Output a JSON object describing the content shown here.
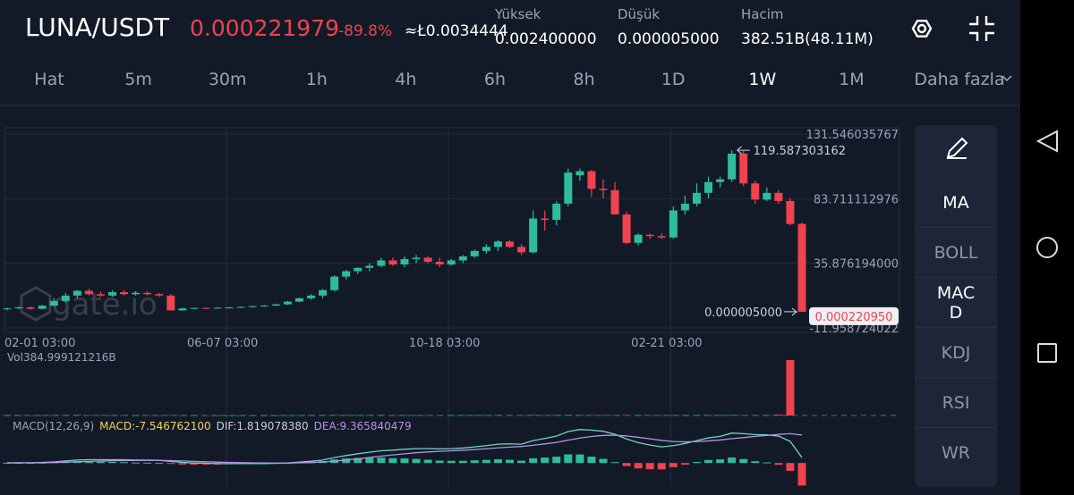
{
  "header": {
    "pair": "LUNA/USDT",
    "price": "0.000221979",
    "change": "-89.8%",
    "approx": "≈Ł0.0034444",
    "stats": [
      {
        "label": "Yüksek",
        "value": "0.002400000"
      },
      {
        "label": "Düşük",
        "value": "0.000005000"
      },
      {
        "label": "Hacim",
        "value": "382.51B(48.11M)"
      }
    ]
  },
  "timeframes": [
    {
      "label": "Hat",
      "active": false
    },
    {
      "label": "5m",
      "active": false
    },
    {
      "label": "30m",
      "active": false
    },
    {
      "label": "1h",
      "active": false
    },
    {
      "label": "4h",
      "active": false
    },
    {
      "label": "6h",
      "active": false
    },
    {
      "label": "8h",
      "active": false
    },
    {
      "label": "1D",
      "active": false
    },
    {
      "label": "1W",
      "active": true
    },
    {
      "label": "1M",
      "active": false
    },
    {
      "label": "Daha fazla",
      "active": false
    }
  ],
  "indicators": [
    {
      "label": "MA",
      "active": true
    },
    {
      "label": "BOLL",
      "active": false
    },
    {
      "label": "MACD",
      "active": true
    },
    {
      "label": "KDJ",
      "active": false
    },
    {
      "label": "RSI",
      "active": false
    },
    {
      "label": "WR",
      "active": false
    }
  ],
  "watermark": "gate.io",
  "chart_data": {
    "type": "candlestick",
    "up_color": "#2ebd9b",
    "down_color": "#f0424f",
    "grid": true,
    "categories": [
      "02-01 03:00",
      null,
      null,
      null,
      null,
      null,
      null,
      null,
      null,
      null,
      null,
      null,
      null,
      null,
      null,
      null,
      "06-07 03:00",
      null,
      null,
      null,
      null,
      null,
      null,
      null,
      null,
      null,
      null,
      null,
      null,
      null,
      null,
      null,
      null,
      null,
      null,
      "10-18 03:00",
      null,
      null,
      null,
      null,
      null,
      null,
      null,
      null,
      null,
      null,
      null,
      null,
      null,
      null,
      null,
      null,
      null,
      null,
      "02-21 03:00",
      null,
      null,
      null,
      null,
      null,
      null,
      null,
      null,
      null,
      null,
      null,
      null,
      null,
      null
    ],
    "open": [
      2,
      2.5,
      3.2,
      2.2,
      4.5,
      8,
      12,
      15.5,
      13,
      12,
      14.5,
      13,
      14,
      13,
      12,
      1,
      2.5,
      2.8,
      2.6,
      3,
      3.2,
      3.6,
      4.2,
      4.6,
      5.5,
      7.5,
      10,
      12,
      16,
      26,
      30,
      32.5,
      34,
      38,
      35,
      39,
      40,
      37,
      35,
      38,
      41,
      45,
      48,
      52,
      48,
      44,
      69,
      68,
      80,
      101,
      104,
      91,
      90,
      72,
      51,
      57,
      56,
      55,
      75,
      80,
      88,
      96,
      98,
      117,
      95,
      83,
      88,
      82,
      65
    ],
    "high": [
      3,
      4,
      4,
      5,
      10,
      14,
      16,
      17,
      15,
      16,
      16,
      15,
      15,
      14,
      13,
      3,
      3,
      3.3,
      3.5,
      3.5,
      4,
      4.5,
      5,
      6,
      8,
      10.5,
      13,
      17,
      27,
      31,
      33,
      36,
      40,
      40,
      41,
      42,
      41,
      40,
      39,
      42,
      46,
      50,
      53,
      53,
      50,
      75,
      75,
      82,
      106,
      106,
      105,
      98,
      96,
      74,
      58,
      58,
      58,
      78,
      86,
      95,
      100,
      100,
      119.587303162,
      119,
      97,
      92,
      90,
      84,
      66
    ],
    "low": [
      1,
      2,
      1.5,
      2,
      4,
      7,
      10,
      12,
      11,
      11,
      12,
      12,
      12,
      11,
      1,
      0.8,
      2,
      2.2,
      2.3,
      2.5,
      2.8,
      3,
      3.8,
      4.3,
      5,
      7,
      9,
      10,
      15,
      24,
      28,
      30,
      33,
      34,
      33,
      36,
      36,
      33,
      34,
      36,
      40,
      43,
      45,
      47,
      42,
      43,
      60,
      64,
      78,
      97,
      85,
      84,
      72,
      50,
      49,
      54,
      54,
      54,
      72,
      78,
      84,
      92,
      96,
      93,
      80,
      82,
      80,
      64,
      5e-06
    ],
    "close": [
      2.5,
      3.2,
      2.2,
      4.5,
      8,
      12,
      15.5,
      13,
      12,
      14.5,
      13,
      14,
      13,
      12,
      1,
      2.5,
      2.8,
      2.6,
      3,
      3.2,
      3.6,
      4.2,
      4.6,
      5.5,
      7.5,
      10,
      12,
      16,
      26,
      30,
      32.5,
      34,
      38,
      35,
      39,
      40,
      37,
      35,
      38,
      41,
      45,
      48,
      52,
      48,
      44,
      69,
      68,
      80,
      103,
      104,
      91,
      90,
      72,
      51,
      57,
      56,
      55,
      75,
      80,
      88,
      96,
      98,
      117,
      95,
      83,
      88,
      82,
      65,
      0.00022095
    ],
    "ylim": [
      -15.26,
      136.17
    ],
    "yticks": [
      131.546035767,
      83.711112976,
      {
        "value": 35.876194,
        "label": "35.876194000"
      },
      -11.958724022
    ],
    "annotations": {
      "high": 119.587303162,
      "low": {
        "value": 5e-06,
        "label": "0.000005000"
      },
      "last": {
        "value": 0.00022095,
        "label": "0.000220950"
      }
    },
    "volume": {
      "label": "Vol384.999121216B",
      "ylim": [
        0,
        385
      ],
      "values": [
        1,
        1,
        0.8,
        1.2,
        2,
        2.5,
        3,
        2,
        1.5,
        1.5,
        1.2,
        1,
        1,
        0.9,
        2.5,
        1,
        0.6,
        0.5,
        0.5,
        0.5,
        0.5,
        0.6,
        0.6,
        0.7,
        1,
        1.2,
        1.5,
        2,
        3,
        2.5,
        2,
        2,
        2.2,
        1.8,
        1.8,
        1.6,
        1.5,
        1.5,
        1.4,
        1.5,
        1.6,
        1.8,
        2,
        1.8,
        1.7,
        3,
        2.5,
        2.2,
        3,
        2.5,
        2.5,
        2.2,
        2.5,
        3,
        2,
        1.5,
        1.4,
        2,
        2.2,
        2,
        1.8,
        2.5,
        2.5,
        2.2,
        1.8,
        2,
        6,
        384.999121216
      ]
    },
    "macd": {
      "label": "MACD(12,26,9)",
      "macd_label": "MACD:-7.546762100",
      "dif_label": "DIF:1.819078380",
      "dea_label": "DEA:9.365840479",
      "ylim": [
        -8,
        12
      ],
      "dif_color": "#6fd3c4",
      "dea_color": "#b592e8",
      "label_color": "#f2d25c",
      "dif": [
        0.1,
        0.1,
        0.1,
        0.2,
        0.4,
        0.7,
        1.0,
        1.1,
        1.1,
        1.1,
        1.1,
        1.0,
        1.0,
        0.9,
        0.5,
        0.2,
        0.0,
        -0.1,
        -0.2,
        -0.2,
        -0.2,
        -0.2,
        -0.2,
        -0.1,
        0.0,
        0.3,
        0.6,
        1.0,
        1.8,
        2.5,
        3.1,
        3.6,
        4.1,
        4.3,
        4.6,
        4.8,
        4.8,
        4.7,
        4.8,
        5.0,
        5.4,
        5.8,
        6.3,
        6.4,
        6.3,
        7.5,
        8.2,
        9.0,
        10.5,
        11.2,
        11.0,
        10.6,
        9.6,
        8.0,
        6.8,
        6.0,
        5.4,
        5.8,
        6.5,
        7.5,
        8.4,
        8.9,
        10.0,
        9.8,
        9.5,
        9.4,
        9.0,
        7.2,
        1.81907838
      ],
      "dea": [
        0.0,
        0.05,
        0.06,
        0.09,
        0.15,
        0.26,
        0.41,
        0.55,
        0.66,
        0.75,
        0.82,
        0.86,
        0.89,
        0.89,
        0.81,
        0.69,
        0.55,
        0.42,
        0.3,
        0.2,
        0.12,
        0.06,
        0.0,
        -0.02,
        -0.02,
        0.05,
        0.16,
        0.33,
        0.62,
        1.0,
        1.42,
        1.86,
        2.31,
        2.71,
        3.09,
        3.43,
        3.7,
        3.9,
        4.08,
        4.26,
        4.49,
        4.75,
        5.06,
        5.33,
        5.53,
        5.92,
        6.38,
        6.9,
        7.62,
        8.34,
        8.87,
        9.22,
        9.3,
        9.04,
        8.59,
        8.07,
        7.54,
        7.19,
        7.05,
        7.14,
        7.39,
        7.69,
        8.15,
        8.48,
        8.9,
        9.2,
        9.6,
        9.8,
        9.365840479
      ],
      "macd": [
        0.1,
        0.05,
        0.04,
        0.11,
        0.25,
        0.44,
        0.59,
        0.55,
        0.44,
        0.35,
        0.28,
        0.14,
        0.11,
        0.01,
        -0.31,
        -0.49,
        -0.55,
        -0.52,
        -0.5,
        -0.4,
        -0.32,
        -0.26,
        -0.2,
        -0.08,
        0.02,
        0.25,
        0.44,
        0.67,
        1.18,
        1.5,
        1.68,
        1.74,
        1.79,
        1.59,
        1.51,
        1.37,
        1.1,
        0.8,
        0.72,
        0.74,
        0.91,
        1.05,
        1.24,
        1.07,
        0.77,
        1.58,
        1.82,
        2.1,
        2.88,
        2.86,
        2.13,
        1.38,
        0.3,
        -1.04,
        -1.79,
        -2.07,
        -2.14,
        -1.39,
        -0.55,
        0.36,
        1.01,
        1.21,
        1.85,
        1.32,
        0.6,
        0.2,
        -0.6,
        -2.6,
        -7.5467621
      ]
    }
  }
}
